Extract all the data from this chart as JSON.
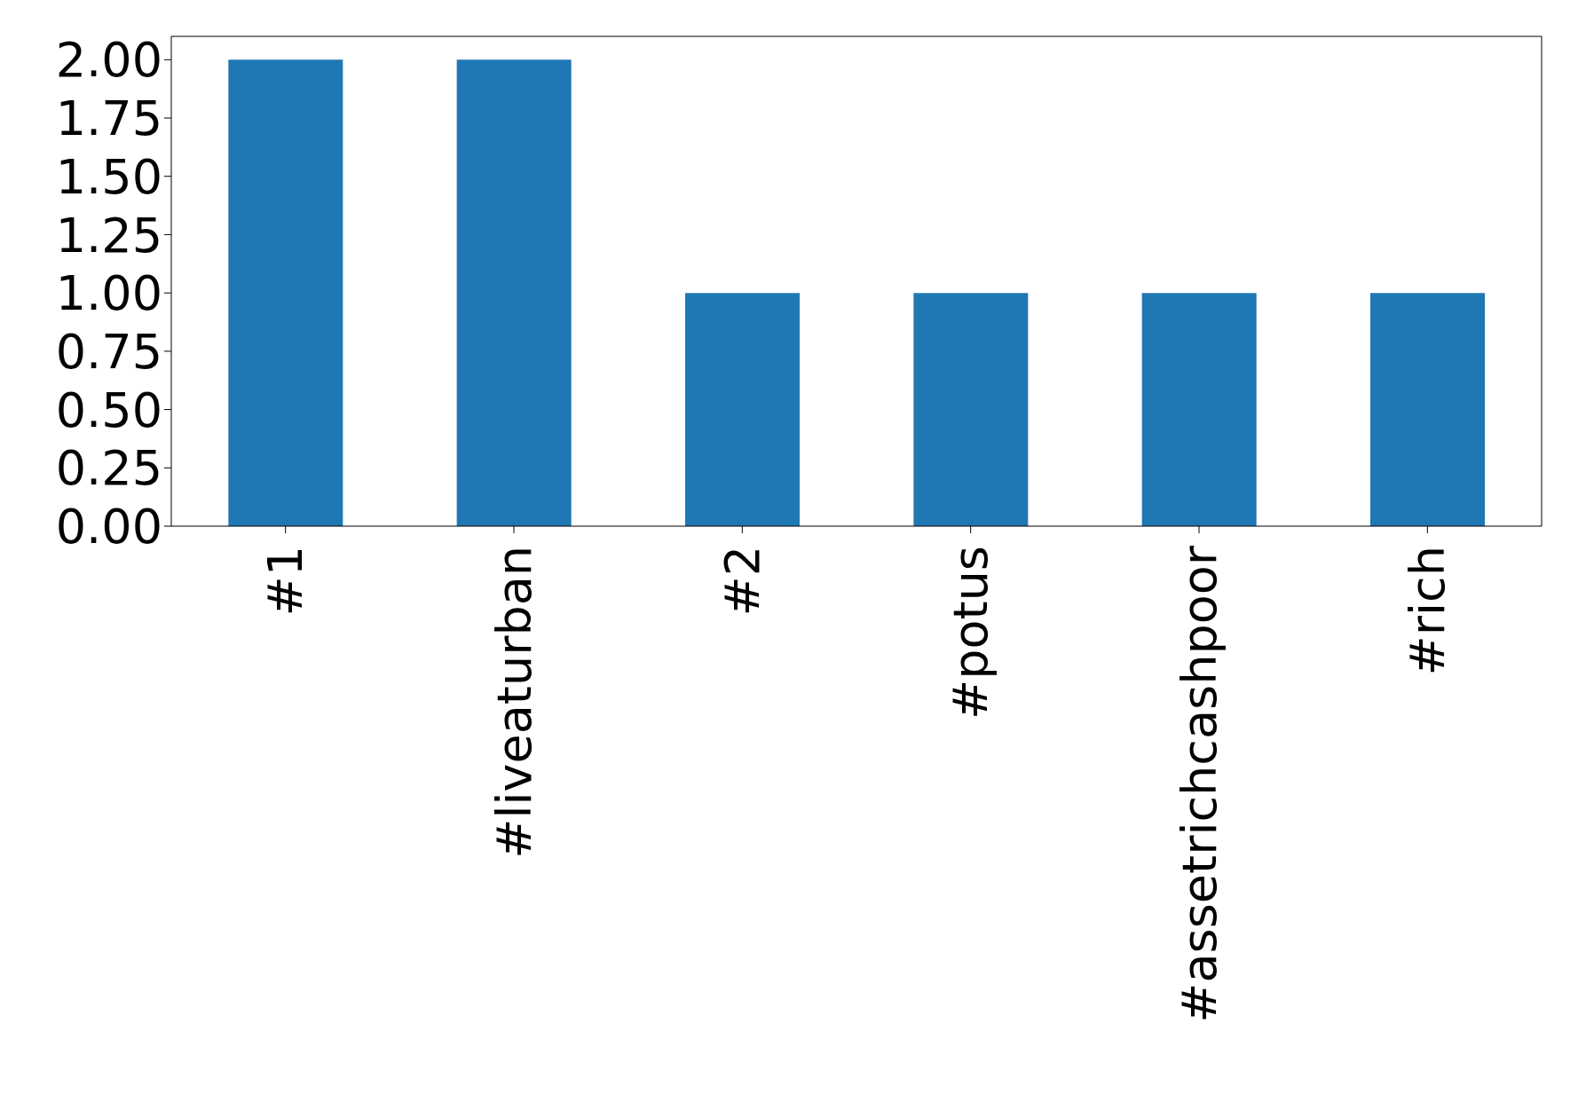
{
  "chart_data": {
    "type": "bar",
    "categories": [
      "#1",
      "#liveaturban",
      "#2",
      "#potus",
      "#assetrichcashpoor",
      "#rich"
    ],
    "values": [
      2,
      2,
      1,
      1,
      1,
      1
    ],
    "color": "#1f77b4",
    "ylim": [
      0,
      2.1
    ],
    "yticks": [
      {
        "value": 0,
        "label": "0.00"
      },
      {
        "value": 0.25,
        "label": "0.25"
      },
      {
        "value": 0.5,
        "label": "0.50"
      },
      {
        "value": 0.75,
        "label": "0.75"
      },
      {
        "value": 1,
        "label": "1.00"
      },
      {
        "value": 1.25,
        "label": "1.25"
      },
      {
        "value": 1.5,
        "label": "1.50"
      },
      {
        "value": 1.75,
        "label": "1.75"
      },
      {
        "value": 2,
        "label": "2.00"
      }
    ],
    "grid": false
  }
}
